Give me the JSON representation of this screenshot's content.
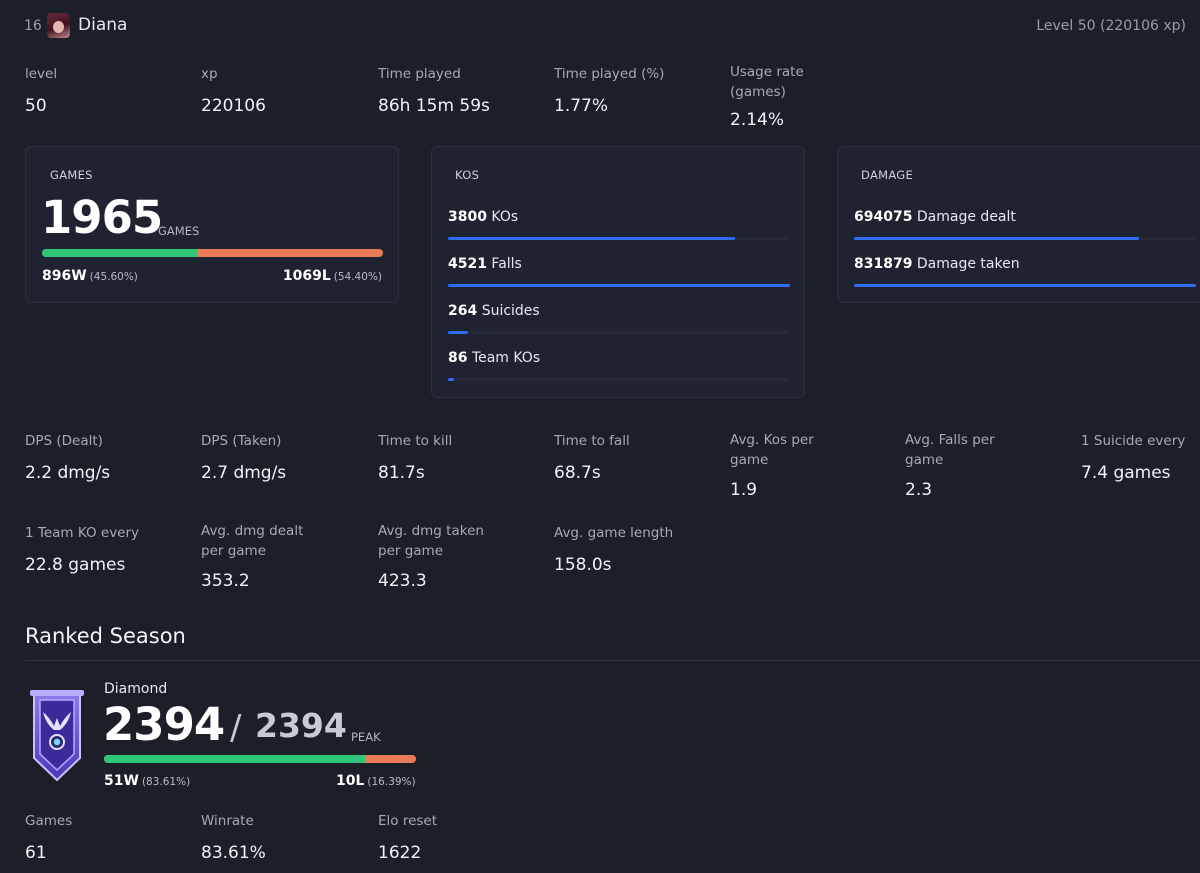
{
  "header": {
    "rank": "16",
    "name": "Diana",
    "level_text": "Level 50 (220106 xp)"
  },
  "top_stats": [
    {
      "label": "level",
      "value": "50"
    },
    {
      "label": "xp",
      "value": "220106"
    },
    {
      "label": "Time played",
      "value": "86h 15m 59s"
    },
    {
      "label": "Time played (%)",
      "value": "1.77%"
    },
    {
      "label": "Usage rate (games)",
      "value": "2.14%"
    }
  ],
  "games_card": {
    "title": "GAMES",
    "total": "1965",
    "unit": "GAMES",
    "wins": "896W",
    "wins_pct": "(45.60%)",
    "losses": "1069L",
    "losses_pct": "(54.40%)",
    "win_fraction": 0.456
  },
  "kos_card": {
    "title": "KOS",
    "rows": [
      {
        "value": "3800",
        "label": "KOs",
        "fill": 0.84
      },
      {
        "value": "4521",
        "label": "Falls",
        "fill": 1.0
      },
      {
        "value": "264",
        "label": "Suicides",
        "fill": 0.058
      },
      {
        "value": "86",
        "label": "Team KOs",
        "fill": 0.019
      }
    ]
  },
  "damage_card": {
    "title": "DAMAGE",
    "rows": [
      {
        "value": "694075",
        "label": "Damage dealt",
        "fill": 0.834
      },
      {
        "value": "831879",
        "label": "Damage taken",
        "fill": 1.0
      }
    ]
  },
  "stats_row1": [
    {
      "label": "DPS (Dealt)",
      "value": "2.2 dmg/s"
    },
    {
      "label": "DPS (Taken)",
      "value": "2.7 dmg/s"
    },
    {
      "label": "Time to kill",
      "value": "81.7s"
    },
    {
      "label": "Time to fall",
      "value": "68.7s"
    },
    {
      "label": "Avg. Kos per game",
      "value": "1.9"
    },
    {
      "label": "Avg. Falls per game",
      "value": "2.3"
    },
    {
      "label": "1 Suicide every",
      "value": "7.4 games"
    }
  ],
  "stats_row2": [
    {
      "label": "1 Team KO every",
      "value": "22.8 games"
    },
    {
      "label": "Avg. dmg dealt per game",
      "value": "353.2"
    },
    {
      "label": "Avg. dmg taken per game",
      "value": "423.3"
    },
    {
      "label": "Avg. game length",
      "value": "158.0s"
    }
  ],
  "ranked": {
    "section_title": "Ranked Season",
    "tier": "Diamond",
    "rating": "2394",
    "separator": "/",
    "peak": "2394",
    "peak_label": "PEAK",
    "wins": "51W",
    "wins_pct": "(83.61%)",
    "losses": "10L",
    "losses_pct": "(16.39%)",
    "win_fraction": 0.8361,
    "stats": [
      {
        "label": "Games",
        "value": "61"
      },
      {
        "label": "Winrate",
        "value": "83.61%"
      },
      {
        "label": "Elo reset",
        "value": "1622"
      }
    ]
  },
  "colors": {
    "win": "#2fc678",
    "loss": "#ea7a56",
    "bar": "#2f6bf0",
    "background": "#1c1e28"
  }
}
